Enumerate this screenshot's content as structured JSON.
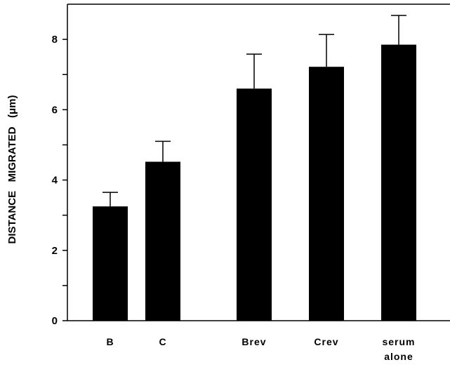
{
  "chart_data": {
    "type": "bar",
    "title": "",
    "xlabel": "",
    "ylabel": "DISTANCE   MIGRATED   (μm)",
    "categories": [
      [
        "B"
      ],
      [
        "C"
      ],
      [
        "Brev"
      ],
      [
        "Crev"
      ],
      [
        "serum",
        "alone"
      ]
    ],
    "category_text": [
      "B",
      "C",
      "Brev",
      "Crev",
      "serum alone"
    ],
    "values": [
      3.25,
      4.52,
      6.6,
      7.22,
      7.85
    ],
    "errors": [
      0.4,
      0.58,
      0.98,
      0.92,
      0.83
    ],
    "ylim": [
      0,
      9
    ],
    "y_ticks": [
      0,
      2,
      4,
      6,
      8
    ],
    "y_minor_ticks": [
      1,
      3,
      5,
      7
    ],
    "grid": false,
    "bar_color": "#000000",
    "axis_color": "#000000"
  }
}
